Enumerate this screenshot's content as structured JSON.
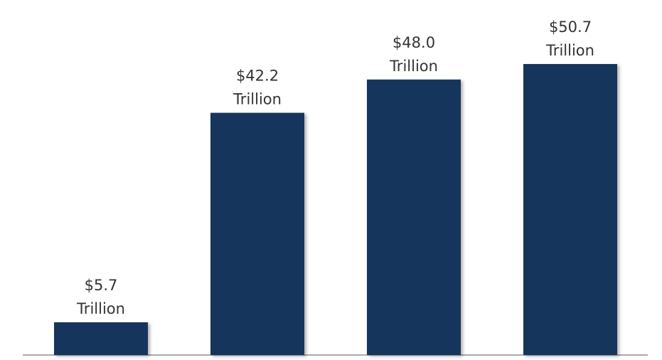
{
  "chart_data": {
    "type": "bar",
    "categories": [
      null,
      null,
      null,
      null
    ],
    "values": [
      5.7,
      42.2,
      48.0,
      50.7
    ],
    "value_labels": [
      "$5.7 Trillion",
      "$42.2 Trillion",
      "$48.0 Trillion",
      "$50.7 Trillion"
    ],
    "color": "#17365d"
  }
}
